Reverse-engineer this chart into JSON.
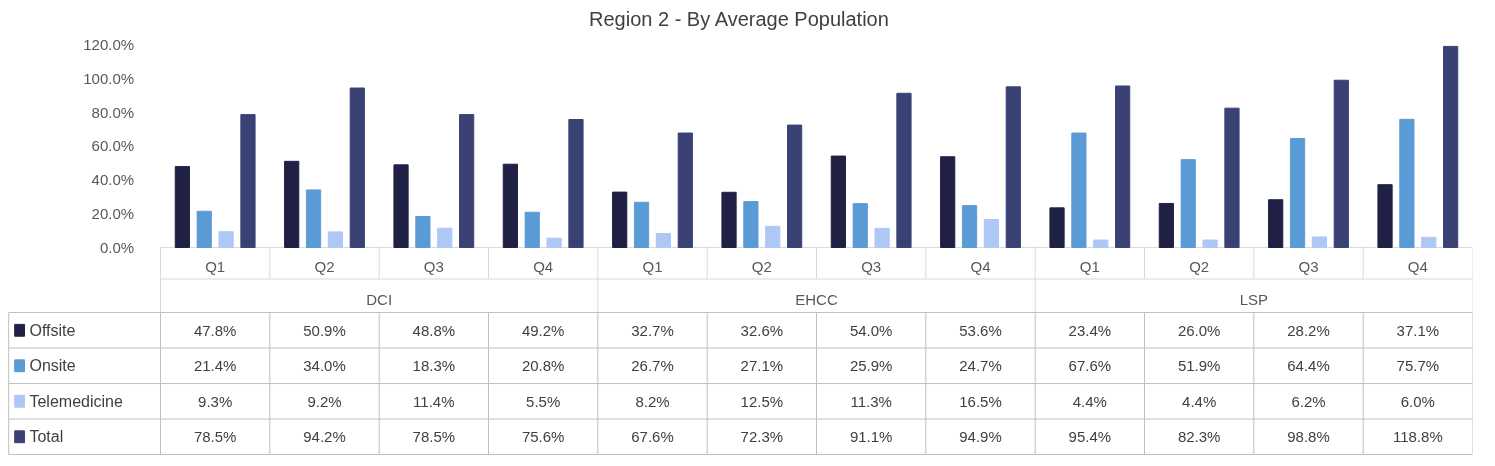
{
  "chart_data": {
    "type": "bar",
    "title": "Region 2 - By Average Population",
    "categories": [
      "Q1",
      "Q2",
      "Q3",
      "Q4",
      "Q1",
      "Q2",
      "Q3",
      "Q4",
      "Q1",
      "Q2",
      "Q3",
      "Q4"
    ],
    "annotations": [
      "DCI",
      "EHCC",
      "LSP"
    ],
    "series": [
      {
        "name": "Offsite",
        "color": "#1f2044",
        "values": [
          47.8,
          50.9,
          48.8,
          49.2,
          32.7,
          32.6,
          54.0,
          53.6,
          23.4,
          26.0,
          28.2,
          37.1
        ],
        "value_labels": [
          "47.8%",
          "50.9%",
          "48.8%",
          "49.2%",
          "32.7%",
          "32.6%",
          "54.0%",
          "53.6%",
          "23.4%",
          "26.0%",
          "28.2%",
          "37.1%"
        ]
      },
      {
        "name": "Onsite",
        "color": "#5b9bd5",
        "values": [
          21.4,
          34.0,
          18.3,
          20.8,
          26.7,
          27.1,
          25.9,
          24.7,
          67.6,
          51.9,
          64.4,
          75.7
        ],
        "value_labels": [
          "21.4%",
          "34.0%",
          "18.3%",
          "20.8%",
          "26.7%",
          "27.1%",
          "25.9%",
          "24.7%",
          "67.6%",
          "51.9%",
          "64.4%",
          "75.7%"
        ]
      },
      {
        "name": "Telemedicine",
        "color": "#adc8f5",
        "values": [
          9.3,
          9.2,
          11.4,
          5.5,
          8.2,
          12.5,
          11.3,
          16.5,
          4.4,
          4.4,
          6.2,
          6.0
        ],
        "value_labels": [
          "9.3%",
          "9.2%",
          "11.4%",
          "5.5%",
          "8.2%",
          "12.5%",
          "11.3%",
          "16.5%",
          "4.4%",
          "4.4%",
          "6.2%",
          "6.0%"
        ]
      },
      {
        "name": "Total",
        "color": "#3a4275",
        "values": [
          78.5,
          94.2,
          78.5,
          75.6,
          67.6,
          72.3,
          91.1,
          94.9,
          95.4,
          82.3,
          98.8,
          118.8
        ],
        "value_labels": [
          "78.5%",
          "94.2%",
          "78.5%",
          "75.6%",
          "67.6%",
          "72.3%",
          "91.1%",
          "94.9%",
          "95.4%",
          "82.3%",
          "98.8%",
          "118.8%"
        ]
      }
    ],
    "ylim": [
      0,
      120
    ],
    "legend": "bottom left",
    "yticks": [
      {
        "value": 0,
        "label": "0.0%"
      },
      {
        "value": 20,
        "label": "20.0%"
      },
      {
        "value": 40,
        "label": "40.0%"
      },
      {
        "value": 60,
        "label": "60.0%"
      },
      {
        "value": 80,
        "label": "80.0%"
      },
      {
        "value": 100,
        "label": "100.0%"
      },
      {
        "value": 120,
        "label": "120.0%"
      }
    ]
  }
}
